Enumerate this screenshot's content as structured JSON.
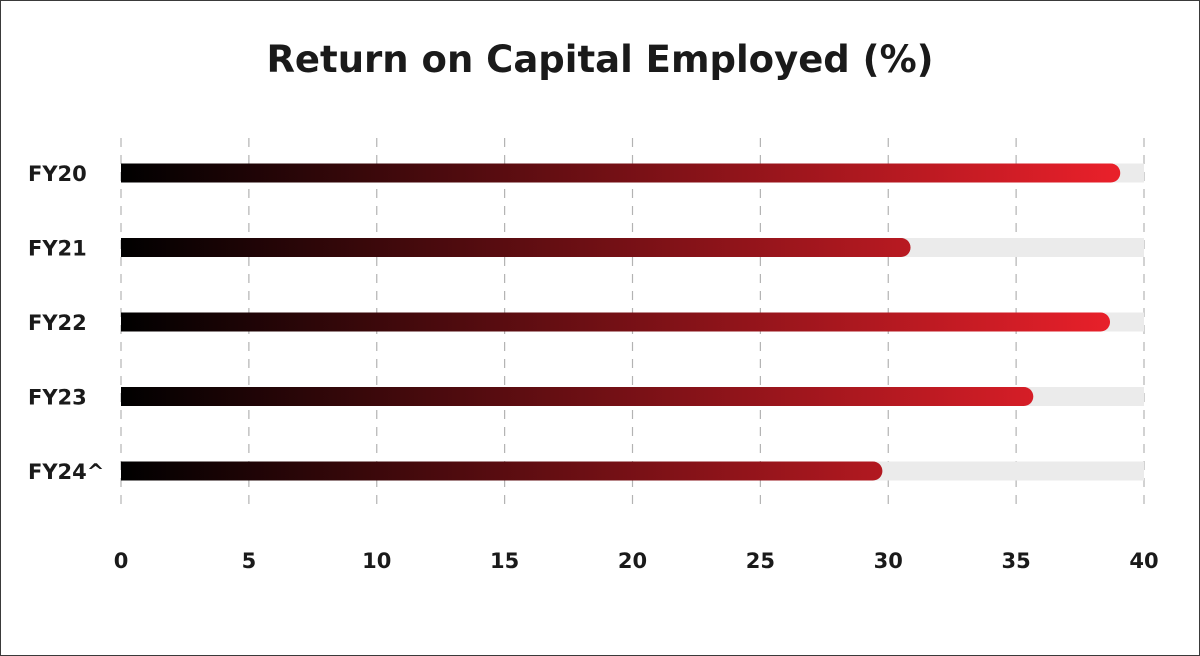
{
  "chart_data": {
    "type": "bar",
    "orientation": "horizontal",
    "title": "Return on Capital Employed (%)",
    "categories": [
      "FY20",
      "FY21",
      "FY22",
      "FY23",
      "FY24^"
    ],
    "values": [
      38.7,
      30.5,
      38.3,
      35.3,
      29.4
    ],
    "xlim": [
      0,
      40
    ],
    "xticks": [
      "0",
      "5",
      "10",
      "15",
      "20",
      "25",
      "30",
      "35",
      "40"
    ],
    "xlabel": "",
    "ylabel": "",
    "grid": "vertical dashed",
    "legend": "none",
    "colors": {
      "bar_start": "#000000",
      "bar_end": "#e8202a",
      "track": "#ebebeb",
      "grid": "#b3b3b3"
    }
  }
}
